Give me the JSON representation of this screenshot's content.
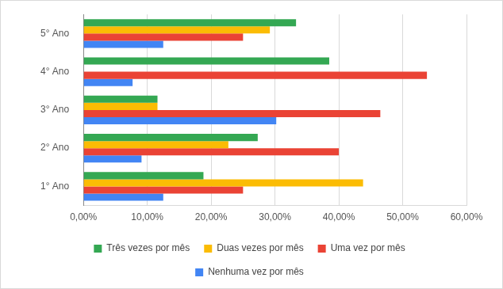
{
  "chart_data": {
    "type": "bar",
    "orientation": "horizontal",
    "categories": [
      "1° Ano",
      "2° Ano",
      "3° Ano",
      "4° Ano",
      "5° Ano"
    ],
    "series": [
      {
        "name": "Três vezes por mês",
        "color": "#34a853",
        "values": [
          18.8,
          27.3,
          11.6,
          38.5,
          33.3
        ]
      },
      {
        "name": "Duas vezes por mês",
        "color": "#fbbc04",
        "values": [
          43.8,
          22.7,
          11.6,
          0,
          29.2
        ]
      },
      {
        "name": "Uma vez por mês",
        "color": "#ea4335",
        "values": [
          25.0,
          40.0,
          46.5,
          53.8,
          25.0
        ]
      },
      {
        "name": "Nenhuma vez por mês",
        "color": "#4285f4",
        "values": [
          12.5,
          9.1,
          30.2,
          7.7,
          12.5
        ]
      }
    ],
    "xlim": [
      0,
      60
    ],
    "xticks": [
      {
        "value": 0,
        "label": "0,00%"
      },
      {
        "value": 10,
        "label": "10,00%"
      },
      {
        "value": 20,
        "label": "20,00%"
      },
      {
        "value": 30,
        "label": "30,00%"
      },
      {
        "value": 40,
        "label": "40,00%"
      },
      {
        "value": 50,
        "label": "50,00%"
      },
      {
        "value": 60,
        "label": "60,00%"
      }
    ],
    "grid": true,
    "legend": "bottom"
  }
}
